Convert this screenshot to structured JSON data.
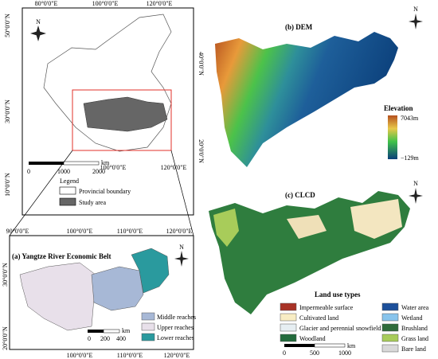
{
  "north_label": "N",
  "china_map": {
    "lon_labels_top": [
      "80°0'0\"E",
      "100°0'0\"E",
      "120°0'0\"E"
    ],
    "lat_labels_left": [
      "50°0'0\"N",
      "30°0'0\"N",
      "10°0'0\"N"
    ],
    "lat_labels_right": [
      "40°0'0\"N",
      "20°0'0\"N"
    ],
    "lon_labels_bottom": [
      "100°0'0\"E",
      "120°0'0\"E"
    ],
    "scale": {
      "ticks": [
        "0",
        "1000",
        "2000"
      ],
      "unit": "km"
    },
    "legend": {
      "title": "Legend",
      "items": [
        "Provincial boundary",
        "Study area"
      ]
    }
  },
  "yreb_map": {
    "title": "(a) Yangtze River Economic Belt",
    "lon_labels_top": [
      "90°0'0\"E",
      "100°0'0\"E",
      "110°0'0\"E",
      "120°0'0\"E"
    ],
    "lon_labels_bottom": [
      "100°0'0\"E",
      "110°0'0\"E",
      "120°0'0\"E"
    ],
    "lat_labels_left": [
      "30°0'0\"N",
      "20°0'0\"N"
    ],
    "scale": {
      "ticks": [
        "0",
        "200",
        "400"
      ],
      "unit": "km"
    },
    "legend": [
      "Middle reaches",
      "Upper reaches",
      "Lower reaches"
    ]
  },
  "dem_map": {
    "title": "(b) DEM",
    "legend_title": "Elevation",
    "max_label": "7043m",
    "min_label": "−129m"
  },
  "clcd_map": {
    "title": "(c) CLCD",
    "legend_title": "Land use types",
    "items": [
      "Impermeable surface",
      "Cultivated land",
      "Glacier and perennial snowfield",
      "Woodland",
      "Water area",
      "Wetland",
      "Brushland",
      "Grass land",
      "Bare land"
    ],
    "scale": {
      "ticks": [
        "0",
        "500",
        "1000"
      ],
      "unit": "km"
    }
  }
}
